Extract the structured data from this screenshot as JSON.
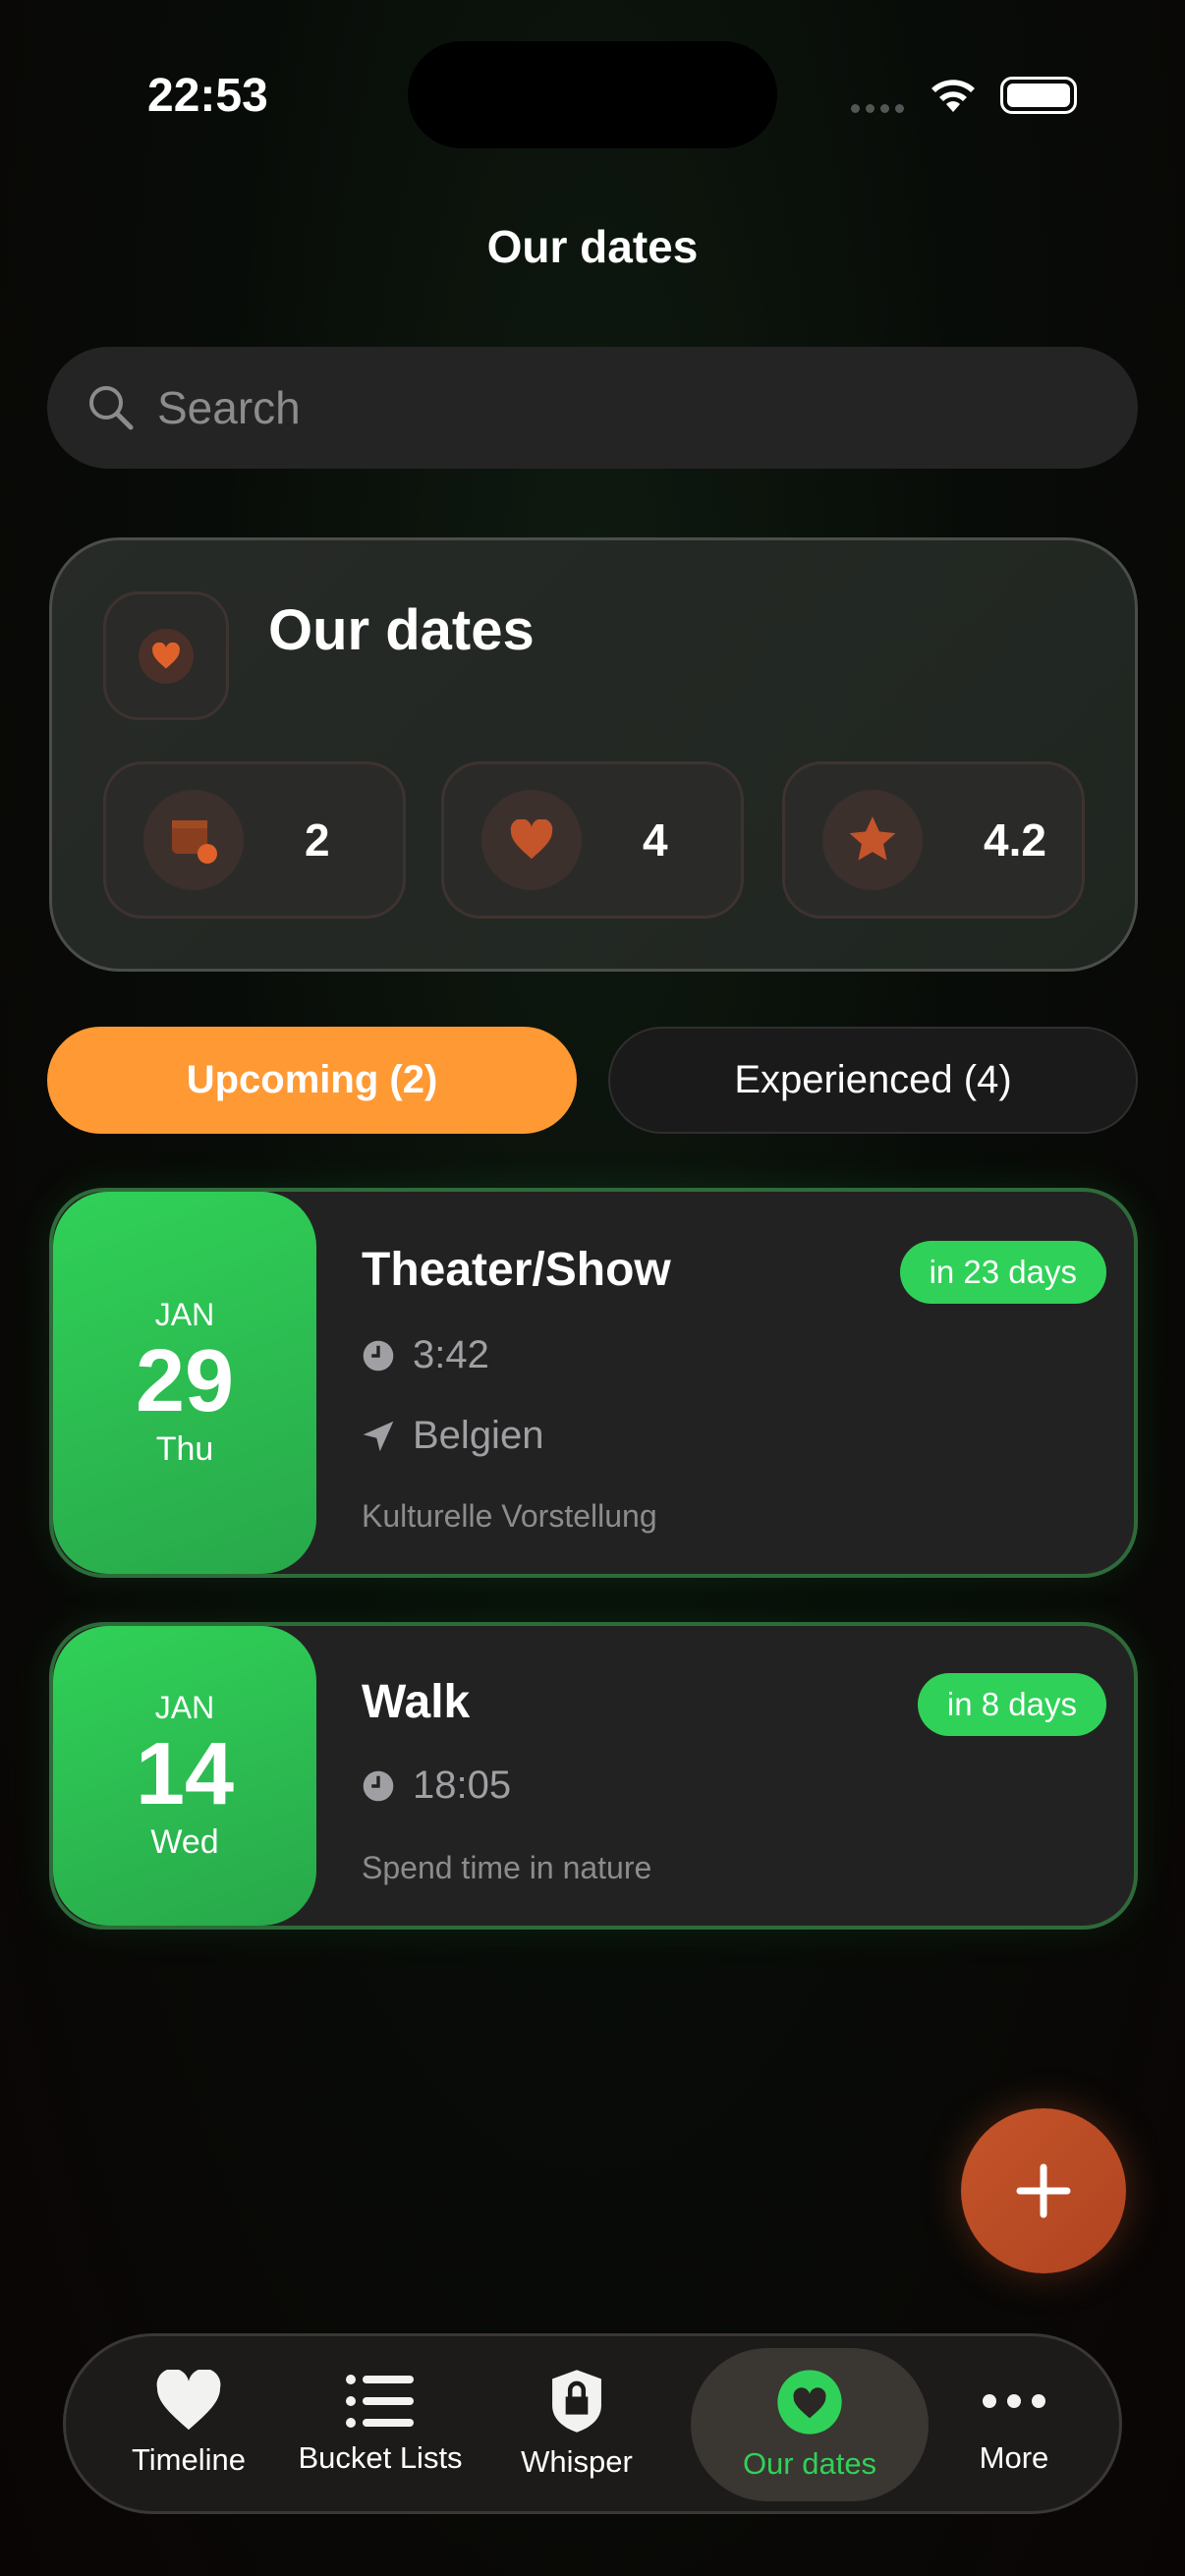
{
  "status_bar": {
    "time": "22:53"
  },
  "header": {
    "title": "Our dates"
  },
  "search": {
    "placeholder": "Search",
    "value": ""
  },
  "summary": {
    "title": "Our dates",
    "stats": [
      {
        "icon": "calendar-clock-icon",
        "value": "2"
      },
      {
        "icon": "heart-icon",
        "value": "4"
      },
      {
        "icon": "star-icon",
        "value": "4.2"
      }
    ]
  },
  "segments": [
    {
      "label": "Upcoming (2)",
      "active": true
    },
    {
      "label": "Experienced (4)",
      "active": false
    }
  ],
  "events": [
    {
      "month": "JAN",
      "day": "29",
      "weekday": "Thu",
      "title": "Theater/Show",
      "badge": "in 23 days",
      "time": "3:42",
      "location": "Belgien",
      "description": "Kulturelle Vorstellung"
    },
    {
      "month": "JAN",
      "day": "14",
      "weekday": "Wed",
      "title": "Walk",
      "badge": "in 8 days",
      "time": "18:05",
      "description": "Spend time in nature"
    }
  ],
  "tabbar": {
    "items": [
      {
        "label": "Timeline"
      },
      {
        "label": "Bucket Lists"
      },
      {
        "label": "Whisper"
      },
      {
        "label": "Our dates",
        "active": true
      },
      {
        "label": "More"
      }
    ]
  },
  "colors": {
    "accent_orange": "#ff9933",
    "green": "#30d158",
    "icon_orange": "#c4542a"
  }
}
